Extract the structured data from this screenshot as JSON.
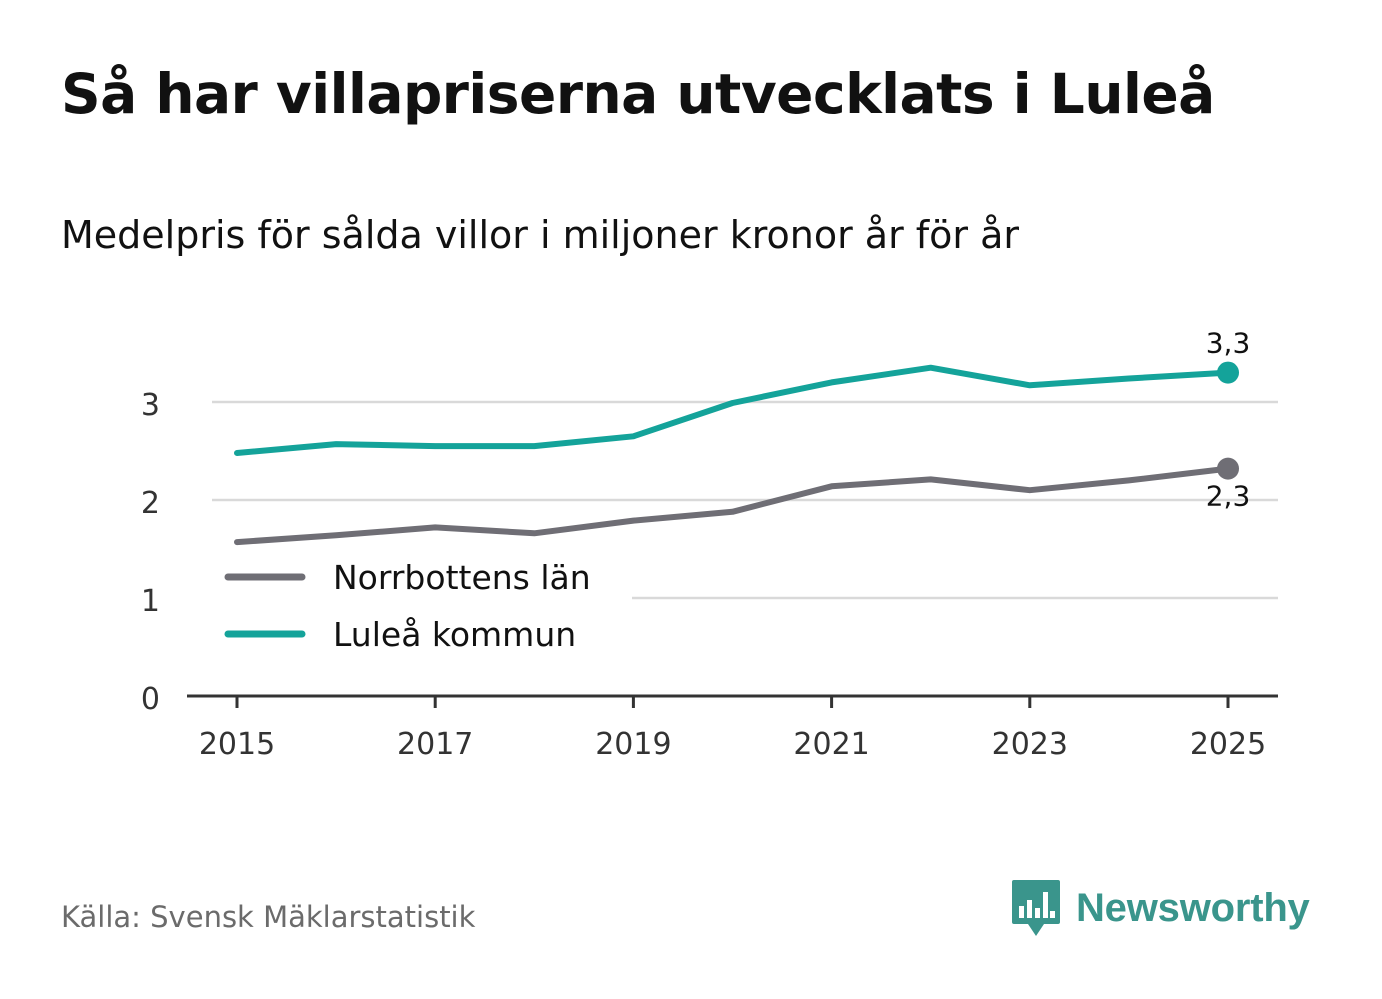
{
  "header": {
    "title": "Så har villapriserna utvecklats i Luleå",
    "subtitle": "Medelpris för sålda villor i miljoner kronor år för år"
  },
  "footer": {
    "source": "Källa: Svensk Mäklarstatistik",
    "brand": "Newsworthy"
  },
  "colors": {
    "lulea": "#14a39a",
    "norrbotten": "#6f6e75",
    "grid": "#d9d9d9",
    "axis": "#333333",
    "brand": "#3a958c"
  },
  "icons": {
    "brand_logo": "bar-chart-speech-bubble-icon"
  },
  "chart_data": {
    "type": "line",
    "title": "Så har villapriserna utvecklats i Luleå",
    "subtitle": "Medelpris för sålda villor i miljoner kronor år för år",
    "xlabel": "",
    "ylabel": "",
    "x": [
      2015,
      2016,
      2017,
      2018,
      2019,
      2020,
      2021,
      2022,
      2023,
      2024,
      2025
    ],
    "xticks": [
      "2015",
      "2017",
      "2019",
      "2021",
      "2023",
      "2025"
    ],
    "xlim": [
      2015,
      2025
    ],
    "ylim": [
      0,
      3.5
    ],
    "yticks": [
      "0",
      "1",
      "2",
      "3"
    ],
    "grid": true,
    "legend_position": "lower-left",
    "series": [
      {
        "name": "Norrbottens län",
        "color": "#6f6e75",
        "values": [
          1.57,
          1.64,
          1.72,
          1.66,
          1.79,
          1.88,
          2.14,
          2.21,
          2.1,
          2.2,
          2.32
        ],
        "end_label": "2,3"
      },
      {
        "name": "Luleå kommun",
        "color": "#14a39a",
        "values": [
          2.48,
          2.57,
          2.55,
          2.55,
          2.65,
          2.99,
          3.2,
          3.35,
          3.17,
          3.24,
          3.3
        ],
        "end_label": "3,3"
      }
    ]
  }
}
